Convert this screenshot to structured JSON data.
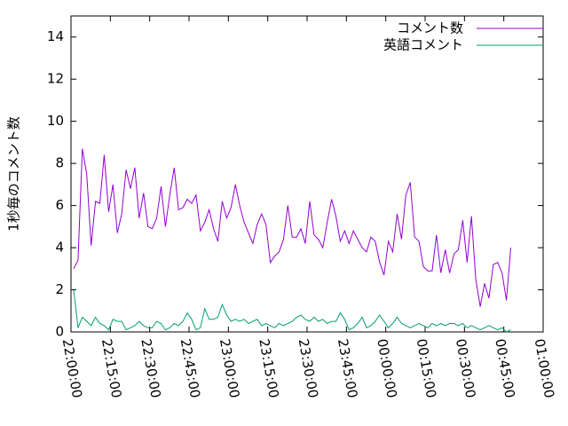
{
  "chart_data": {
    "type": "line",
    "ylabel": "1秒毎のコメント数",
    "xlim": [
      "22:00:00",
      "01:00:00"
    ],
    "xticks": [
      "22:00:00",
      "22:15:00",
      "22:30:00",
      "22:45:00",
      "23:00:00",
      "23:15:00",
      "23:30:00",
      "23:45:00",
      "00:00:00",
      "00:15:00",
      "00:30:00",
      "00:45:00",
      "01:00:00"
    ],
    "ylim": [
      0,
      15
    ],
    "yticks": [
      0,
      2,
      4,
      6,
      8,
      10,
      12,
      14
    ],
    "legend": "top-right",
    "x": [
      "22:01:00",
      "22:02:40",
      "22:04:20",
      "22:06:00",
      "22:07:40",
      "22:09:20",
      "22:11:00",
      "22:12:40",
      "22:14:20",
      "22:16:00",
      "22:17:40",
      "22:19:20",
      "22:21:00",
      "22:22:40",
      "22:24:20",
      "22:26:00",
      "22:27:40",
      "22:29:20",
      "22:31:00",
      "22:32:40",
      "22:34:20",
      "22:36:00",
      "22:37:40",
      "22:39:20",
      "22:41:00",
      "22:42:40",
      "22:44:20",
      "22:46:00",
      "22:47:40",
      "22:49:20",
      "22:51:00",
      "22:52:40",
      "22:54:20",
      "22:56:00",
      "22:57:40",
      "22:59:20",
      "23:01:00",
      "23:02:40",
      "23:04:20",
      "23:06:00",
      "23:07:40",
      "23:09:20",
      "23:11:00",
      "23:12:40",
      "23:14:20",
      "23:16:00",
      "23:17:40",
      "23:19:20",
      "23:21:00",
      "23:22:40",
      "23:24:20",
      "23:26:00",
      "23:27:40",
      "23:29:20",
      "23:31:00",
      "23:32:40",
      "23:34:20",
      "23:36:00",
      "23:37:40",
      "23:39:20",
      "23:41:00",
      "23:42:40",
      "23:44:20",
      "23:46:00",
      "23:47:40",
      "23:49:20",
      "23:51:00",
      "23:52:40",
      "23:54:20",
      "23:56:00",
      "23:57:40",
      "23:59:20",
      "00:01:00",
      "00:02:40",
      "00:04:20",
      "00:06:00",
      "00:07:40",
      "00:09:20",
      "00:11:00",
      "00:12:40",
      "00:14:20",
      "00:16:00",
      "00:17:40",
      "00:19:20",
      "00:21:00",
      "00:22:40",
      "00:24:20",
      "00:26:00",
      "00:27:40",
      "00:29:20",
      "00:31:00",
      "00:32:40",
      "00:34:20",
      "00:36:00",
      "00:37:40",
      "00:39:20",
      "00:41:00",
      "00:42:40",
      "00:44:20",
      "00:46:00",
      "00:47:40"
    ],
    "series": [
      {
        "name": "コメント数",
        "color": "#9400d3",
        "values": [
          3.0,
          3.4,
          8.7,
          7.5,
          4.1,
          6.2,
          6.1,
          8.4,
          5.7,
          7.0,
          4.7,
          5.6,
          7.7,
          6.8,
          7.8,
          5.4,
          6.6,
          5.0,
          4.9,
          5.4,
          6.9,
          5.0,
          6.5,
          7.8,
          5.8,
          5.9,
          6.3,
          6.1,
          6.5,
          4.8,
          5.2,
          5.8,
          4.9,
          4.3,
          6.2,
          5.4,
          5.9,
          7.0,
          6.0,
          5.2,
          4.7,
          4.2,
          5.1,
          5.6,
          5.1,
          3.3,
          3.6,
          3.8,
          4.4,
          6.0,
          4.5,
          4.5,
          4.9,
          4.2,
          6.2,
          4.6,
          4.4,
          4.0,
          5.2,
          6.3,
          5.5,
          4.3,
          4.8,
          4.2,
          4.8,
          4.4,
          4.0,
          3.8,
          4.5,
          4.3,
          3.3,
          2.7,
          4.3,
          3.8,
          5.6,
          4.4,
          6.5,
          7.1,
          4.5,
          4.3,
          3.1,
          2.9,
          2.9,
          4.6,
          2.8,
          3.9,
          2.8,
          3.7,
          3.9,
          5.3,
          3.3,
          5.5,
          2.5,
          1.2,
          2.3,
          1.6,
          3.2,
          3.3,
          2.8,
          1.5,
          4.0
        ]
      },
      {
        "name": "英語コメント",
        "color": "#009e73",
        "values": [
          2.0,
          0.2,
          0.7,
          0.5,
          0.3,
          0.7,
          0.4,
          0.3,
          0.1,
          0.6,
          0.5,
          0.5,
          0.1,
          0.2,
          0.3,
          0.5,
          0.3,
          0.2,
          0.2,
          0.5,
          0.4,
          0.1,
          0.2,
          0.4,
          0.3,
          0.5,
          0.9,
          0.6,
          0.1,
          0.2,
          1.1,
          0.6,
          0.6,
          0.7,
          1.3,
          0.8,
          0.5,
          0.6,
          0.5,
          0.6,
          0.4,
          0.5,
          0.6,
          0.3,
          0.4,
          0.3,
          0.2,
          0.4,
          0.3,
          0.4,
          0.5,
          0.7,
          0.8,
          0.6,
          0.5,
          0.7,
          0.5,
          0.6,
          0.4,
          0.5,
          0.5,
          0.9,
          0.6,
          0.1,
          0.2,
          0.4,
          0.7,
          0.2,
          0.3,
          0.5,
          0.8,
          0.5,
          0.2,
          0.4,
          0.7,
          0.4,
          0.3,
          0.2,
          0.3,
          0.4,
          0.3,
          0.2,
          0.4,
          0.3,
          0.4,
          0.3,
          0.4,
          0.4,
          0.3,
          0.4,
          0.2,
          0.3,
          0.2,
          0.1,
          0.2,
          0.3,
          0.2,
          0.1,
          0.2,
          0.0,
          0.1
        ]
      }
    ]
  }
}
